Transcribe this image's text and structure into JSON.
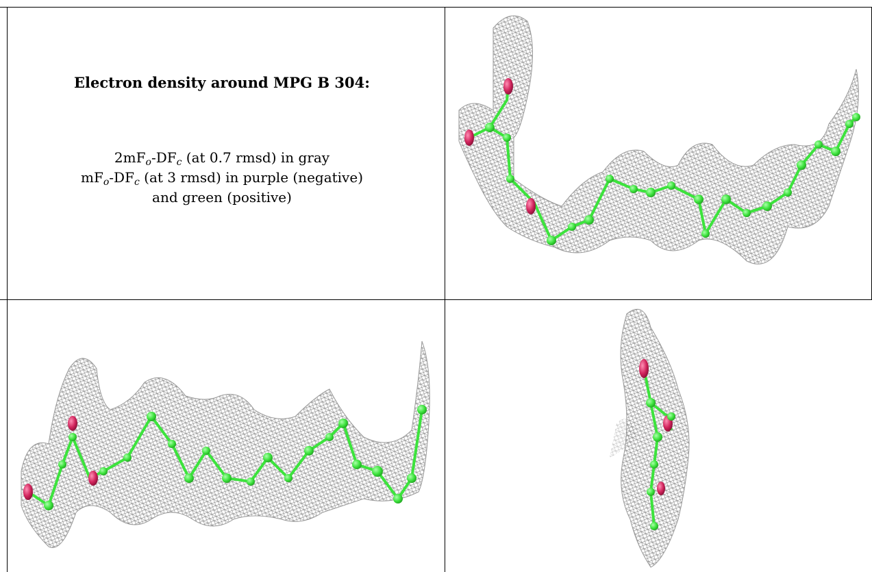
{
  "legend": {
    "title": "Electron density around MPG B 304:",
    "line1": {
      "pre": "2mF",
      "s1": "o",
      "mid": "-DF",
      "s2": "c",
      "post": " (at 0.7 rmsd) in gray"
    },
    "line2": {
      "pre": "mF",
      "s1": "o",
      "mid": "-DF",
      "s2": "c",
      "post": " (at 3 rmsd) in purple (negative)"
    },
    "line3": "and green (positive)"
  },
  "colors": {
    "mesh": "#8a8a8a",
    "carbon": "#3de33d",
    "oxygen": "#d1245c",
    "border": "#000000"
  },
  "panels": [
    {
      "name": "density-view-1",
      "view": "side view"
    },
    {
      "name": "density-view-2",
      "view": "side view"
    },
    {
      "name": "density-view-3",
      "view": "end-on view"
    }
  ]
}
